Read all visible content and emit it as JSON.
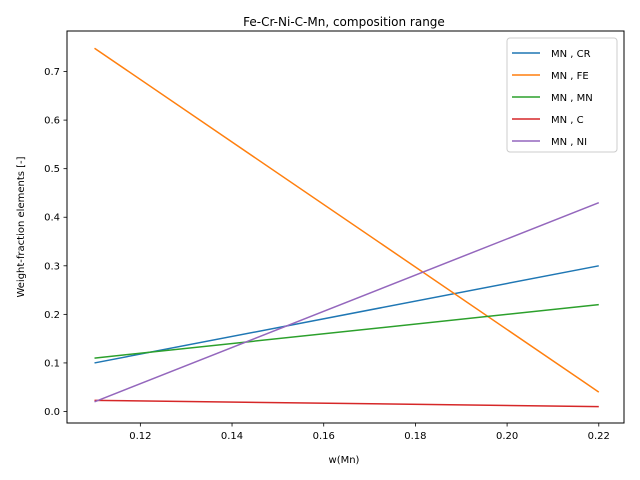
{
  "chart_data": {
    "type": "line",
    "title": "Fe-Cr-Ni-C-Mn, composition range",
    "xlabel": "w(Mn)",
    "ylabel": "Weight-fraction elements [-]",
    "xlim": [
      0.104,
      0.2255
    ],
    "ylim": [
      -0.0237,
      0.7835
    ],
    "x": [
      0.11,
      0.22
    ],
    "xticks": [
      0.12,
      0.14,
      0.16,
      0.18,
      0.2,
      0.22
    ],
    "xtick_labels": [
      "0.12",
      "0.14",
      "0.16",
      "0.18",
      "0.20",
      "0.22"
    ],
    "yticks": [
      0.0,
      0.1,
      0.2,
      0.3,
      0.4,
      0.5,
      0.6,
      0.7
    ],
    "ytick_labels": [
      "0.0",
      "0.1",
      "0.2",
      "0.3",
      "0.4",
      "0.5",
      "0.6",
      "0.7"
    ],
    "grid": false,
    "legend_position": "top-right",
    "series": [
      {
        "name": "MN , CR",
        "color": "#1f77b4",
        "values": [
          0.1,
          0.3
        ]
      },
      {
        "name": "MN , FE",
        "color": "#ff7f0e",
        "values": [
          0.748,
          0.04
        ]
      },
      {
        "name": "MN , MN",
        "color": "#2ca02c",
        "values": [
          0.11,
          0.22
        ]
      },
      {
        "name": "MN , C",
        "color": "#d62728",
        "values": [
          0.023,
          0.01
        ]
      },
      {
        "name": "MN , NI",
        "color": "#9467bd",
        "values": [
          0.02,
          0.43
        ]
      }
    ]
  }
}
